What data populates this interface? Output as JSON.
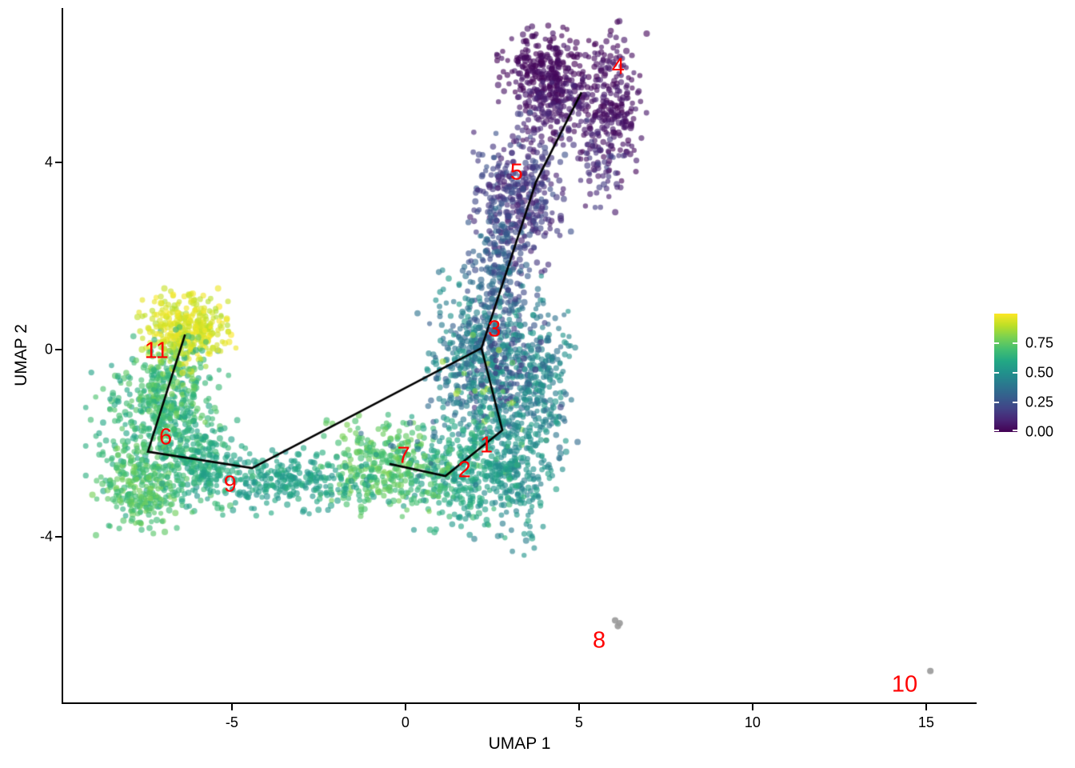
{
  "chart_data": {
    "type": "scatter",
    "title": "",
    "xlabel": "UMAP 1",
    "ylabel": "UMAP 2",
    "xlim": [
      -9.86,
      16.43
    ],
    "ylim": [
      -7.53,
      7.29
    ],
    "x_tick_values": [
      -5,
      0,
      5,
      10,
      15
    ],
    "x_tick_labels": [
      "-5",
      "0",
      "5",
      "10",
      "15"
    ],
    "y_tick_values": [
      4,
      0,
      -4
    ],
    "y_tick_labels": [
      "4",
      "0",
      "-4"
    ],
    "grid": false,
    "background": "#ffffff",
    "axis_color": "#000000",
    "colorbar": {
      "position": "right",
      "range": [
        0,
        1
      ],
      "tick_values": [
        0.75,
        0.5,
        0.25,
        0.0
      ],
      "tick_labels": [
        "0.75",
        "0.50",
        "0.25",
        "0.00"
      ],
      "colormap": "viridis",
      "stops": [
        "#440154",
        "#482475",
        "#414487",
        "#355f8d",
        "#2a788e",
        "#21918c",
        "#22a884",
        "#44bf70",
        "#7ad151",
        "#bddf26",
        "#fde725"
      ]
    },
    "point_style": {
      "radius": 3.6,
      "opacity": 0.62,
      "outlier_color": "#9b9b9b"
    },
    "label_color": "#ff0000",
    "cluster_labels": [
      {
        "id": "1",
        "x": 2.33,
        "y": -2.05
      },
      {
        "id": "2",
        "x": 1.7,
        "y": -2.58
      },
      {
        "id": "3",
        "x": 2.56,
        "y": 0.43
      },
      {
        "id": "4",
        "x": 6.13,
        "y": 6.02
      },
      {
        "id": "5",
        "x": 3.2,
        "y": 3.77
      },
      {
        "id": "6",
        "x": -6.91,
        "y": -1.88
      },
      {
        "id": "7",
        "x": -0.05,
        "y": -2.27
      },
      {
        "id": "8",
        "x": 5.58,
        "y": -6.21
      },
      {
        "id": "9",
        "x": -5.05,
        "y": -2.88
      },
      {
        "id": "10",
        "x": 14.38,
        "y": -7.15
      },
      {
        "id": "11",
        "x": -7.17,
        "y": -0.03
      }
    ],
    "clusters": [
      {
        "id": "4",
        "blobs": [
          {
            "cx": 4.05,
            "cy": 5.95,
            "sx": 0.6,
            "sy": 0.4,
            "n": 280,
            "v0": 0.0,
            "v1": 0.06
          },
          {
            "cx": 5.95,
            "cy": 5.3,
            "sx": 0.42,
            "sy": 0.7,
            "n": 210,
            "v0": 0.0,
            "v1": 0.08
          },
          {
            "cx": 4.4,
            "cy": 5.05,
            "sx": 0.65,
            "sy": 0.4,
            "n": 160,
            "v0": 0.02,
            "v1": 0.12
          },
          {
            "cx": 5.55,
            "cy": 3.95,
            "sx": 0.33,
            "sy": 0.55,
            "n": 70,
            "v0": 0.04,
            "v1": 0.2
          }
        ]
      },
      {
        "id": "5",
        "blobs": [
          {
            "cx": 3.3,
            "cy": 3.25,
            "sx": 0.6,
            "sy": 0.75,
            "n": 380,
            "v0": 0.08,
            "v1": 0.26
          },
          {
            "cx": 2.6,
            "cy": 1.55,
            "sx": 0.4,
            "sy": 0.7,
            "n": 180,
            "v0": 0.2,
            "v1": 0.38
          }
        ]
      },
      {
        "id": "3",
        "blobs": [
          {
            "cx": 2.3,
            "cy": -0.15,
            "sx": 0.85,
            "sy": 0.8,
            "n": 520,
            "v0": 0.28,
            "v1": 0.55
          },
          {
            "cx": 3.9,
            "cy": -0.5,
            "sx": 0.45,
            "sy": 0.85,
            "n": 170,
            "v0": 0.34,
            "v1": 0.55
          },
          {
            "cx": 2.9,
            "cy": -0.1,
            "sx": 0.65,
            "sy": 0.7,
            "n": 60,
            "v0": 0.15,
            "v1": 0.28
          },
          {
            "cx": 2.4,
            "cy": -0.9,
            "sx": 0.7,
            "sy": 0.7,
            "n": 22,
            "v0": 0.72,
            "v1": 0.88
          }
        ]
      },
      {
        "id": "1",
        "blobs": [
          {
            "cx": 3.15,
            "cy": -2.3,
            "sx": 0.6,
            "sy": 0.85,
            "n": 320,
            "v0": 0.42,
            "v1": 0.58
          }
        ]
      },
      {
        "id": "2",
        "blobs": [
          {
            "cx": 1.5,
            "cy": -2.65,
            "sx": 0.85,
            "sy": 0.55,
            "n": 320,
            "v0": 0.5,
            "v1": 0.68
          }
        ]
      },
      {
        "id": "7",
        "blobs": [
          {
            "cx": -0.55,
            "cy": -2.5,
            "sx": 0.85,
            "sy": 0.45,
            "n": 300,
            "v0": 0.66,
            "v1": 0.8
          },
          {
            "cx": 0.3,
            "cy": -2.0,
            "sx": 0.8,
            "sy": 0.45,
            "n": 14,
            "v0": 0.3,
            "v1": 0.45
          }
        ]
      },
      {
        "id": "9",
        "blobs": [
          {
            "cx": -3.35,
            "cy": -2.8,
            "sx": 1.25,
            "sy": 0.3,
            "n": 280,
            "v0": 0.5,
            "v1": 0.64
          }
        ]
      },
      {
        "id": "6",
        "blobs": [
          {
            "cx": -7.1,
            "cy": -1.7,
            "sx": 0.85,
            "sy": 0.85,
            "n": 470,
            "v0": 0.56,
            "v1": 0.74
          },
          {
            "cx": -7.7,
            "cy": -3.0,
            "sx": 0.55,
            "sy": 0.4,
            "n": 220,
            "v0": 0.64,
            "v1": 0.8
          },
          {
            "cx": -5.8,
            "cy": -2.4,
            "sx": 0.6,
            "sy": 0.45,
            "n": 160,
            "v0": 0.54,
            "v1": 0.68
          },
          {
            "cx": -6.9,
            "cy": -0.8,
            "sx": 0.5,
            "sy": 0.45,
            "n": 120,
            "v0": 0.6,
            "v1": 0.8
          }
        ]
      },
      {
        "id": "11",
        "blobs": [
          {
            "cx": -6.3,
            "cy": 0.5,
            "sx": 0.6,
            "sy": 0.38,
            "n": 300,
            "v0": 0.88,
            "v1": 1.0
          },
          {
            "cx": -6.6,
            "cy": -0.15,
            "sx": 0.4,
            "sy": 0.35,
            "n": 70,
            "v0": 0.6,
            "v1": 0.97
          }
        ]
      },
      {
        "id": "8",
        "gray": true,
        "points": [
          [
            6.04,
            -5.78
          ],
          [
            6.12,
            -5.9
          ],
          [
            6.17,
            -5.84
          ]
        ]
      },
      {
        "id": "10",
        "gray": true,
        "points": [
          [
            15.12,
            -6.86
          ]
        ]
      }
    ],
    "trajectory": {
      "color": "#000000",
      "width": 2.6,
      "paths": [
        [
          [
            -6.35,
            0.32
          ],
          [
            -7.42,
            -2.18
          ],
          [
            -4.42,
            -2.53
          ],
          [
            2.19,
            0.03
          ]
        ],
        [
          [
            2.19,
            0.03
          ],
          [
            3.76,
            3.58
          ],
          [
            5.07,
            5.49
          ]
        ],
        [
          [
            2.19,
            0.03
          ],
          [
            2.79,
            -1.72
          ],
          [
            1.15,
            -2.7
          ],
          [
            -0.46,
            -2.44
          ]
        ]
      ]
    },
    "seed": 1337
  }
}
